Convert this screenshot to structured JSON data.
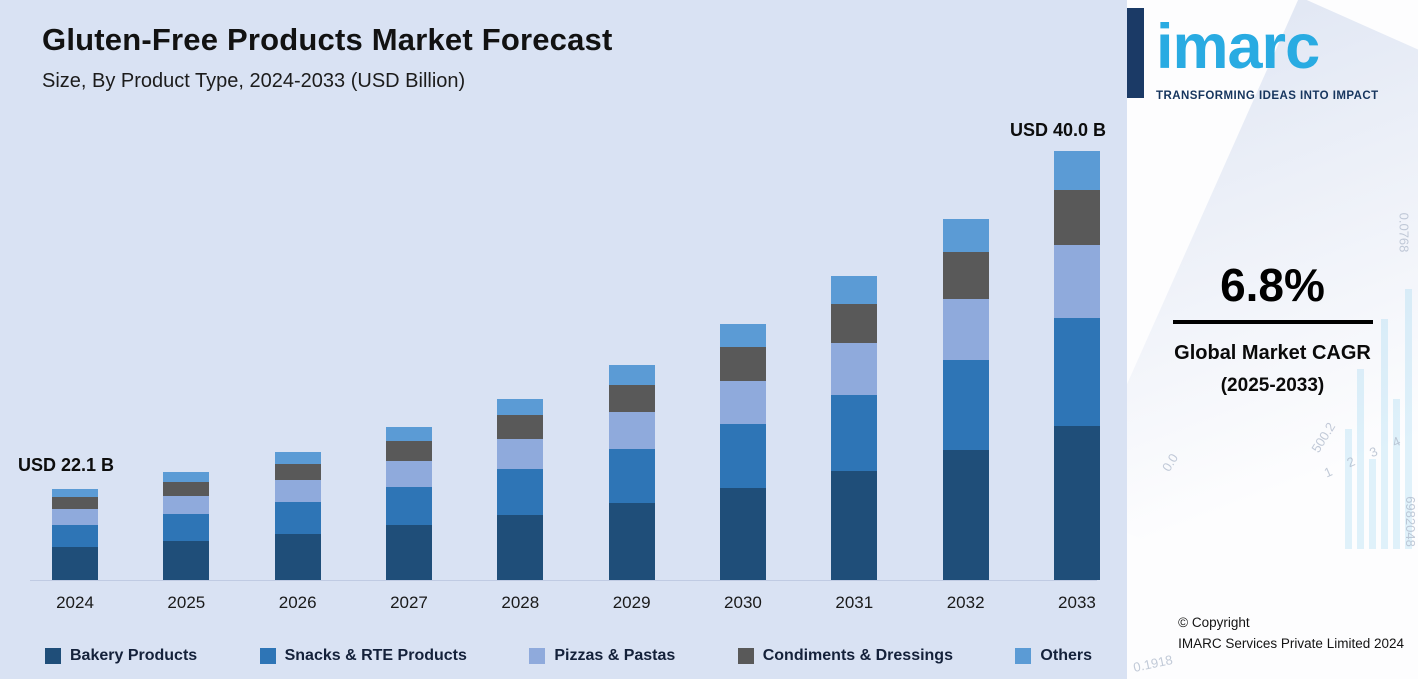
{
  "header": {
    "title": "Gluten-Free Products Market Forecast",
    "subtitle": "Size, By Product Type, 2024-2033 (USD Billion)"
  },
  "chart_data": {
    "type": "bar",
    "stacked": true,
    "title": "Gluten-Free Products Market Forecast",
    "xlabel": "",
    "ylabel": "Market Size (USD Billion)",
    "categories": [
      "2024",
      "2025",
      "2026",
      "2027",
      "2028",
      "2029",
      "2030",
      "2031",
      "2032",
      "2033"
    ],
    "series": [
      {
        "name": "Bakery Products",
        "color": "#1f4e79",
        "values": [
          8.0,
          8.5,
          9.1,
          9.7,
          10.4,
          11.1,
          11.8,
          12.6,
          13.5,
          14.4
        ]
      },
      {
        "name": "Snacks & RTE Products",
        "color": "#2e75b6",
        "values": [
          5.5,
          5.9,
          6.3,
          6.7,
          7.2,
          7.7,
          8.2,
          8.8,
          9.4,
          10.0
        ]
      },
      {
        "name": "Pizzas & Pastas",
        "color": "#8faadc",
        "values": [
          3.8,
          4.0,
          4.3,
          4.6,
          4.9,
          5.2,
          5.6,
          6.0,
          6.4,
          6.8
        ]
      },
      {
        "name": "Condiments & Dressings",
        "color": "#595959",
        "values": [
          2.9,
          3.1,
          3.3,
          3.5,
          3.7,
          4.0,
          4.3,
          4.6,
          4.9,
          5.2
        ]
      },
      {
        "name": "Others",
        "color": "#5b9bd5",
        "values": [
          2.0,
          2.1,
          2.3,
          2.4,
          2.6,
          2.8,
          3.0,
          3.2,
          3.4,
          3.6
        ]
      }
    ],
    "totals": [
      22.1,
      23.6,
      25.2,
      26.9,
      28.8,
      30.7,
      32.8,
      35.0,
      37.4,
      40.0
    ],
    "annotations": [
      {
        "text": "USD 22.1 B",
        "target": "2024"
      },
      {
        "text": "USD 40.0 B",
        "target": "2033"
      }
    ],
    "legend_position": "bottom",
    "axis": {
      "x_visible": true,
      "y_visible": false,
      "gridlines": false
    },
    "note": "Segment values estimated from bar proportions; only year totals 22.1 and 40.0 are labeled on the chart"
  },
  "sidebar": {
    "logo_text": "imarc",
    "tagline": "TRANSFORMING IDEAS INTO IMPACT",
    "cagr_value": "6.8%",
    "cagr_label_line1": "Global Market CAGR",
    "cagr_label_line2": "(2025-2033)",
    "copyright_line1": "© Copyright",
    "copyright_line2": "IMARC Services Private Limited 2024",
    "decorative_numbers": [
      "6982048",
      "0.0768",
      "500.2",
      "0.0",
      "1 2 3 4",
      "0.1918"
    ]
  },
  "colors": {
    "background": "#d9e2f3",
    "logo_blue": "#29abe2",
    "logo_navy": "#1b3a66",
    "rule_black": "#000000"
  }
}
